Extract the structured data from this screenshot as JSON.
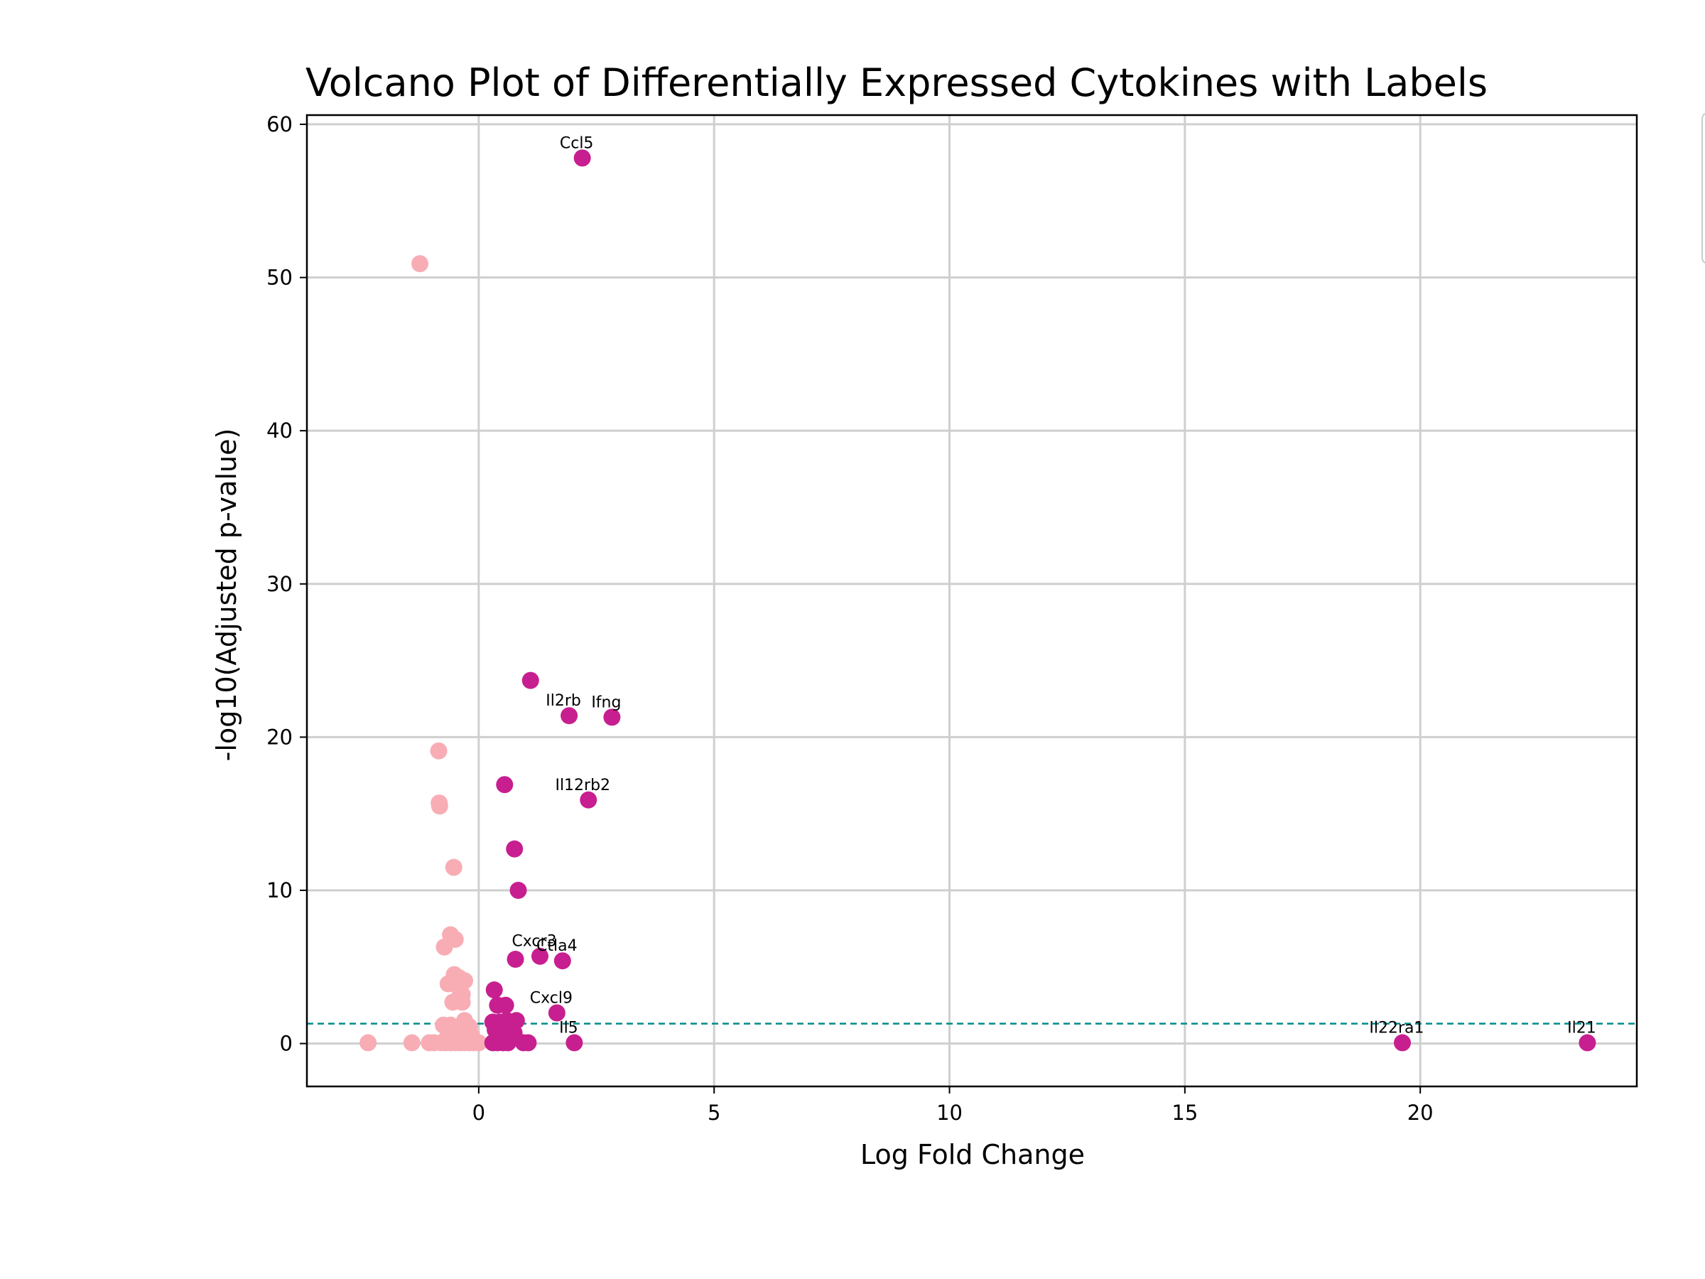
{
  "chart_data": {
    "type": "scatter",
    "title": "Volcano Plot of Differentially Expressed Cytokines with Labels",
    "xlabel": "Log Fold Change",
    "ylabel": "-log10(Adjusted p-value)",
    "xlim": [
      -3.65,
      24.6
    ],
    "ylim": [
      -2.8,
      60.6
    ],
    "xticks": [
      0,
      5,
      10,
      15,
      20
    ],
    "yticks": [
      0,
      10,
      20,
      30,
      40,
      50,
      60
    ],
    "grid": true,
    "colors": {
      "up": "#c71f8f",
      "down": "#f8adb5",
      "threshold": "#008b8b"
    },
    "threshold_y": 1.3,
    "series": [
      {
        "color": "#f8adb5",
        "points": [
          {
            "x": -1.25,
            "y": 50.9
          },
          {
            "x": -0.85,
            "y": 19.1
          },
          {
            "x": -0.84,
            "y": 15.7
          },
          {
            "x": -0.83,
            "y": 15.5
          },
          {
            "x": -0.53,
            "y": 11.5
          },
          {
            "x": -0.6,
            "y": 7.1
          },
          {
            "x": -0.5,
            "y": 6.8
          },
          {
            "x": -0.73,
            "y": 6.3
          },
          {
            "x": -0.52,
            "y": 4.5
          },
          {
            "x": -0.42,
            "y": 4.3
          },
          {
            "x": -0.3,
            "y": 4.1
          },
          {
            "x": -0.65,
            "y": 3.9
          },
          {
            "x": -0.4,
            "y": 3.5
          },
          {
            "x": -0.35,
            "y": 3.2
          },
          {
            "x": -0.55,
            "y": 2.7
          },
          {
            "x": -0.35,
            "y": 2.7
          },
          {
            "x": -0.3,
            "y": 1.5
          },
          {
            "x": -0.75,
            "y": 1.2
          },
          {
            "x": -0.6,
            "y": 1.2
          },
          {
            "x": -0.45,
            "y": 1.0
          },
          {
            "x": -0.2,
            "y": 1.1
          },
          {
            "x": -0.65,
            "y": 0.6
          },
          {
            "x": -0.35,
            "y": 0.5
          },
          {
            "x": -0.15,
            "y": 0.5
          },
          {
            "x": -2.35,
            "y": 0.05
          },
          {
            "x": -1.42,
            "y": 0.05
          },
          {
            "x": -1.05,
            "y": 0.05
          },
          {
            "x": -0.95,
            "y": 0.05
          },
          {
            "x": -0.8,
            "y": 0.05
          },
          {
            "x": -0.7,
            "y": 0.05
          },
          {
            "x": -0.6,
            "y": 0.05
          },
          {
            "x": -0.5,
            "y": 0.05
          },
          {
            "x": -0.4,
            "y": 0.05
          },
          {
            "x": -0.3,
            "y": 0.05
          },
          {
            "x": -0.2,
            "y": 0.05
          },
          {
            "x": -0.1,
            "y": 0.05
          },
          {
            "x": 0.0,
            "y": 0.05
          }
        ]
      },
      {
        "color": "#c71f8f",
        "points": [
          {
            "x": 2.2,
            "y": 57.8,
            "label": "Ccl5"
          },
          {
            "x": 1.1,
            "y": 23.7
          },
          {
            "x": 1.92,
            "y": 21.4,
            "label": "Il2rb"
          },
          {
            "x": 2.83,
            "y": 21.3,
            "label": "Ifng"
          },
          {
            "x": 0.55,
            "y": 16.9
          },
          {
            "x": 2.33,
            "y": 15.9,
            "label": "Il12rb2"
          },
          {
            "x": 0.76,
            "y": 12.7
          },
          {
            "x": 0.84,
            "y": 10.0
          },
          {
            "x": 0.78,
            "y": 5.5
          },
          {
            "x": 1.3,
            "y": 5.7,
            "label": "Cxcr3"
          },
          {
            "x": 1.78,
            "y": 5.4,
            "label": "Ctla4"
          },
          {
            "x": 0.33,
            "y": 3.5
          },
          {
            "x": 0.4,
            "y": 2.5
          },
          {
            "x": 0.57,
            "y": 2.5
          },
          {
            "x": 1.66,
            "y": 2.0,
            "label": "Cxcl9"
          },
          {
            "x": 0.3,
            "y": 1.4
          },
          {
            "x": 0.45,
            "y": 1.4
          },
          {
            "x": 0.6,
            "y": 1.5
          },
          {
            "x": 0.8,
            "y": 1.5
          },
          {
            "x": 0.35,
            "y": 0.9
          },
          {
            "x": 0.5,
            "y": 0.8
          },
          {
            "x": 0.65,
            "y": 0.9
          },
          {
            "x": 0.75,
            "y": 0.7
          },
          {
            "x": 0.3,
            "y": 0.05
          },
          {
            "x": 0.4,
            "y": 0.05
          },
          {
            "x": 0.52,
            "y": 0.05
          },
          {
            "x": 0.62,
            "y": 0.05
          },
          {
            "x": 0.95,
            "y": 0.05
          },
          {
            "x": 1.05,
            "y": 0.05
          },
          {
            "x": 2.03,
            "y": 0.05,
            "label": "Il5"
          },
          {
            "x": 19.62,
            "y": 0.05,
            "label": "Il22ra1"
          },
          {
            "x": 23.55,
            "y": 0.05,
            "label": "Il21"
          }
        ]
      }
    ]
  }
}
